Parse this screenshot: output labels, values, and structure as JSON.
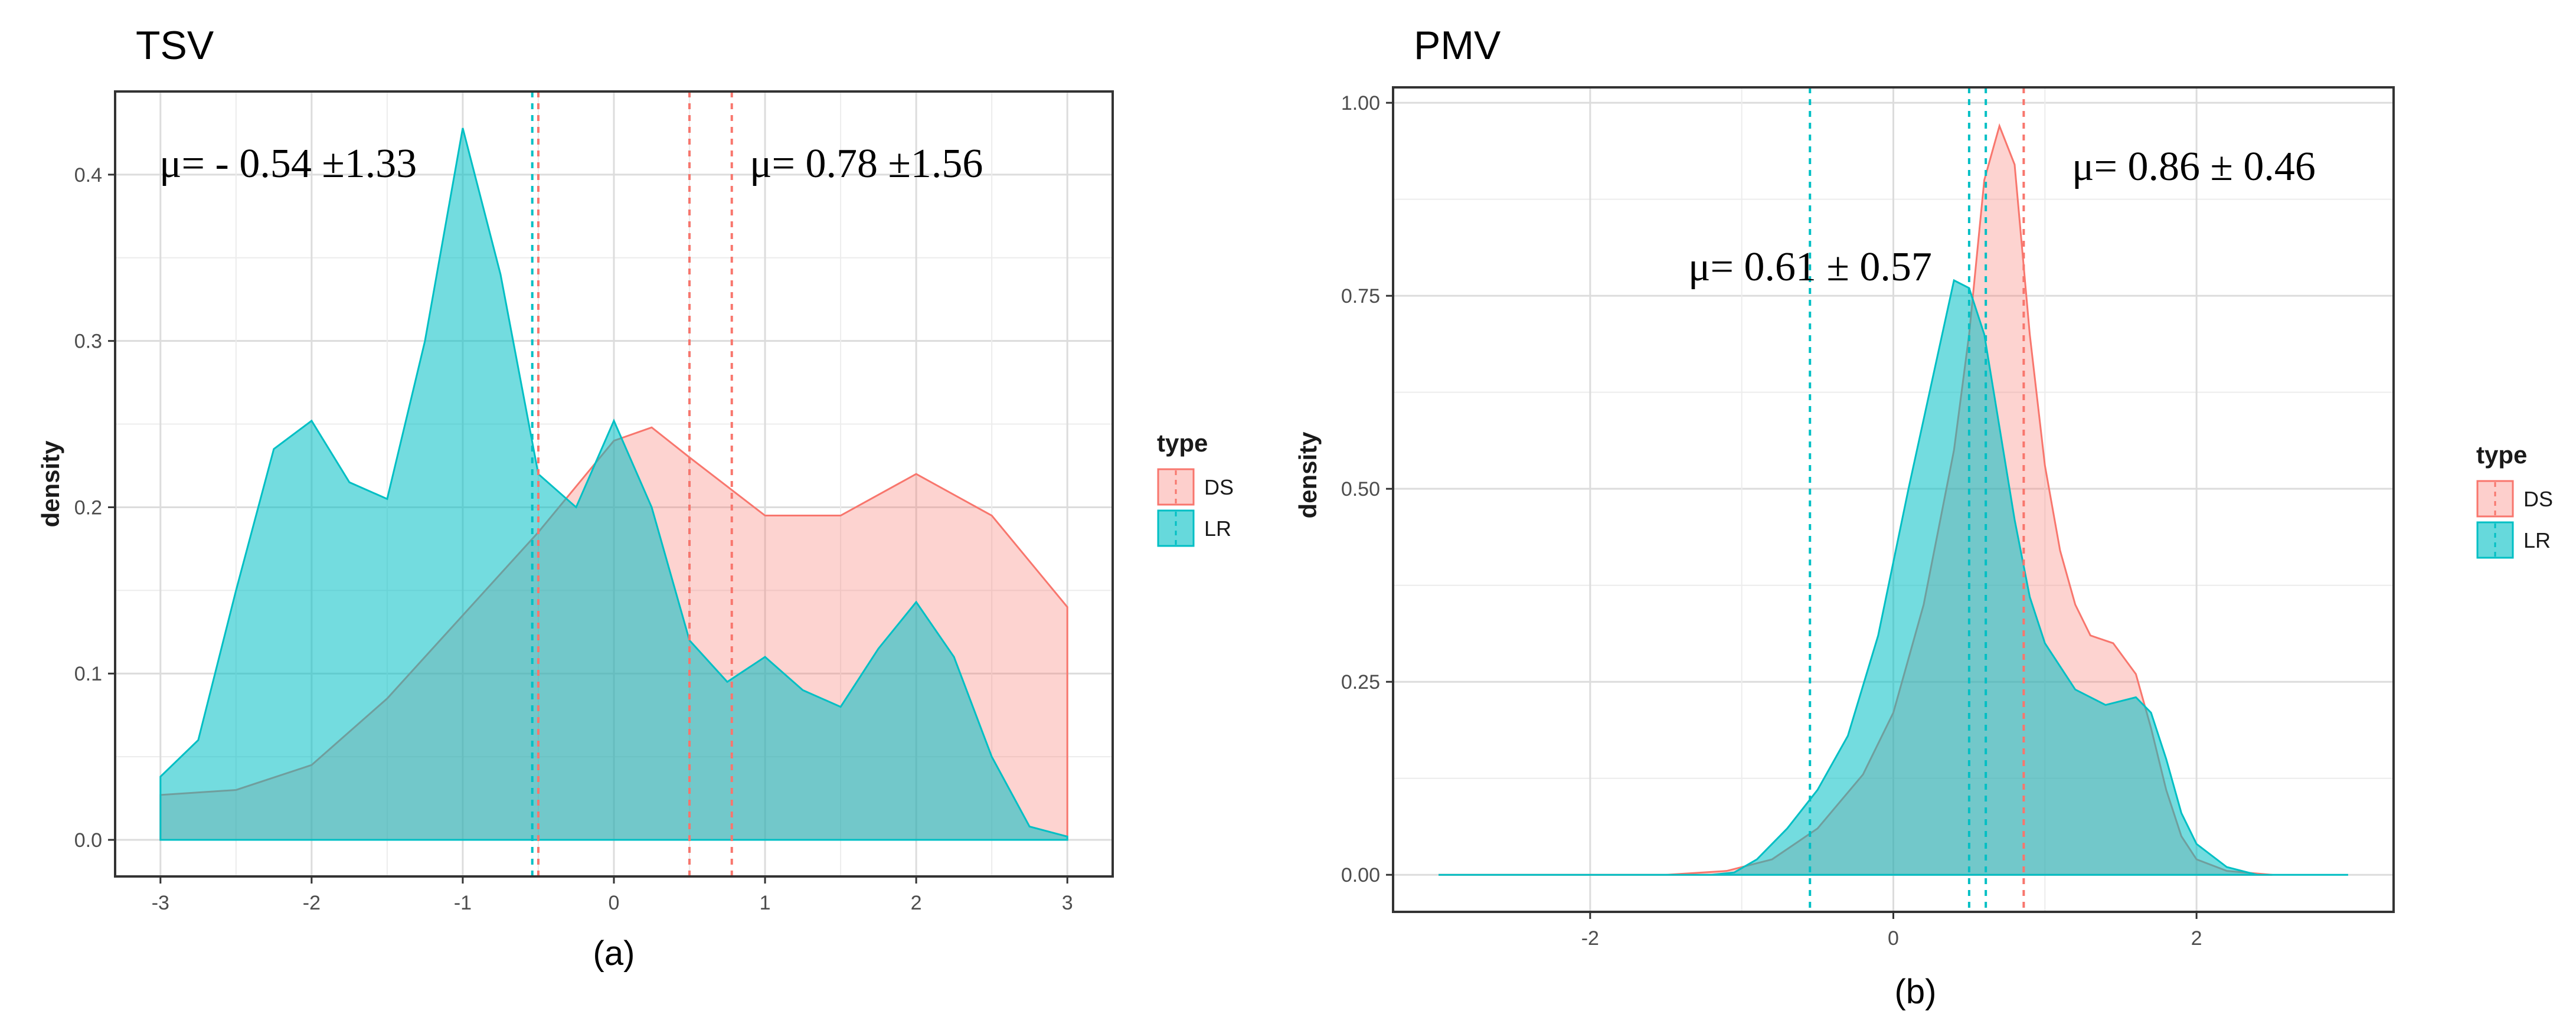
{
  "chart_data": [
    {
      "type": "area",
      "title": "TSV",
      "subtitle": "(a)",
      "xlabel": "",
      "ylabel": "density",
      "xlim": [
        -3.3,
        3.3
      ],
      "ylim": [
        -0.022,
        0.45
      ],
      "x_ticks": [
        -3,
        -2,
        -1,
        0,
        1,
        2,
        3
      ],
      "y_ticks": [
        0.0,
        0.1,
        0.2,
        0.3,
        0.4
      ],
      "y_tick_labels": [
        "0.0",
        "0.1",
        "0.2",
        "0.3",
        "0.4"
      ],
      "grid": true,
      "legend": {
        "title": "type",
        "entries": [
          "DS",
          "LR"
        ],
        "placement": "right"
      },
      "series": [
        {
          "name": "DS",
          "color": "#F8766D",
          "x": [
            -3,
            -2.5,
            -2,
            -1.5,
            -1,
            -0.5,
            0,
            0.25,
            0.5,
            1,
            1.5,
            2,
            2.5,
            3
          ],
          "y": [
            0.027,
            0.03,
            0.045,
            0.085,
            0.135,
            0.185,
            0.24,
            0.248,
            0.23,
            0.195,
            0.195,
            0.22,
            0.195,
            0.14
          ]
        },
        {
          "name": "LR",
          "color": "#00BFC4",
          "x": [
            -3,
            -2.75,
            -2.5,
            -2.25,
            -2,
            -1.75,
            -1.5,
            -1.25,
            -1,
            -0.75,
            -0.5,
            -0.25,
            0,
            0.25,
            0.5,
            0.75,
            1,
            1.25,
            1.5,
            1.75,
            2,
            2.25,
            2.5,
            2.75,
            3
          ],
          "y": [
            0.038,
            0.06,
            0.15,
            0.235,
            0.252,
            0.215,
            0.205,
            0.3,
            0.428,
            0.34,
            0.22,
            0.2,
            0.252,
            0.2,
            0.12,
            0.095,
            0.11,
            0.09,
            0.08,
            0.115,
            0.143,
            0.11,
            0.05,
            0.008,
            0.002
          ]
        }
      ],
      "vlines": [
        {
          "x": -0.54,
          "color": "#00BFC4"
        },
        {
          "x": -0.5,
          "color": "#F8766D"
        },
        {
          "x": 0.5,
          "color": "#00BFC4"
        },
        {
          "x": 0.5,
          "color": "#F8766D"
        },
        {
          "x": 0.78,
          "color": "#F8766D"
        }
      ],
      "annotations": [
        {
          "text": "μ= - 0.54 ±1.33",
          "x": -3.0,
          "y": 0.395
        },
        {
          "text": "μ= 0.78 ±1.56",
          "x": 0.92,
          "y": 0.395
        }
      ]
    },
    {
      "type": "area",
      "title": "PMV",
      "subtitle": "(b)",
      "xlabel": "",
      "ylabel": "density",
      "xlim": [
        -3.3,
        3.3
      ],
      "ylim": [
        -0.048,
        1.02
      ],
      "x_ticks": [
        -2,
        0,
        2
      ],
      "y_ticks": [
        0.0,
        0.25,
        0.5,
        0.75,
        1.0
      ],
      "y_tick_labels": [
        "0.00",
        "0.25",
        "0.50",
        "0.75",
        "1.00"
      ],
      "grid": true,
      "legend": {
        "title": "type",
        "entries": [
          "DS",
          "LR"
        ],
        "placement": "right"
      },
      "series": [
        {
          "name": "DS",
          "color": "#F8766D",
          "x": [
            -3,
            -1.5,
            -1.1,
            -0.8,
            -0.5,
            -0.2,
            0,
            0.2,
            0.4,
            0.5,
            0.6,
            0.7,
            0.8,
            0.9,
            1.0,
            1.1,
            1.2,
            1.3,
            1.45,
            1.6,
            1.7,
            1.8,
            1.9,
            2.0,
            2.2,
            2.5
          ],
          "y": [
            0,
            0,
            0.005,
            0.02,
            0.06,
            0.13,
            0.21,
            0.35,
            0.55,
            0.7,
            0.9,
            0.97,
            0.92,
            0.7,
            0.53,
            0.42,
            0.35,
            0.31,
            0.3,
            0.26,
            0.19,
            0.11,
            0.05,
            0.02,
            0.005,
            0
          ]
        },
        {
          "name": "LR",
          "color": "#00BFC4",
          "x": [
            -3,
            -1.2,
            -1.05,
            -0.9,
            -0.7,
            -0.5,
            -0.3,
            -0.1,
            0.1,
            0.3,
            0.4,
            0.5,
            0.6,
            0.7,
            0.8,
            0.9,
            1.0,
            1.2,
            1.4,
            1.6,
            1.7,
            1.8,
            1.9,
            2.0,
            2.2,
            2.4,
            3.0
          ],
          "y": [
            0,
            0,
            0.003,
            0.02,
            0.06,
            0.11,
            0.18,
            0.31,
            0.5,
            0.68,
            0.77,
            0.76,
            0.7,
            0.58,
            0.46,
            0.36,
            0.3,
            0.24,
            0.22,
            0.23,
            0.21,
            0.15,
            0.08,
            0.04,
            0.01,
            0,
            0
          ]
        }
      ],
      "vlines": [
        {
          "x": -0.55,
          "color": "#00BFC4"
        },
        {
          "x": 0.5,
          "color": "#00BFC4"
        },
        {
          "x": 0.61,
          "color": "#00BFC4"
        },
        {
          "x": 0.86,
          "color": "#F8766D"
        }
      ],
      "annotations": [
        {
          "text": "μ= 0.61 ± 0.57",
          "x": -1.4,
          "y": 0.77
        },
        {
          "text": "μ= 0.86 ± 0.46",
          "x": 1.06,
          "y": 0.87
        }
      ]
    }
  ]
}
